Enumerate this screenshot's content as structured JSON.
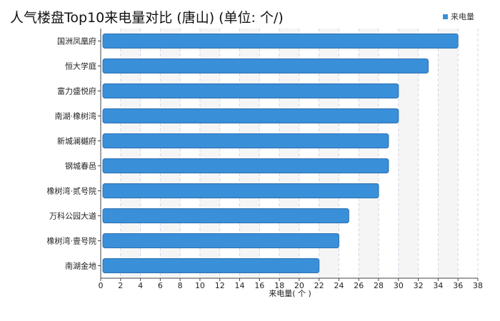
{
  "chart_data": {
    "type": "bar",
    "orientation": "horizontal",
    "title": "人气楼盘Top10来电量对比 (唐山) (单位: 个/)",
    "xlabel": "来电量( 个 )",
    "ylabel": "",
    "categories": [
      "国洲凤凰府",
      "恒大学庭",
      "富力盛悦府",
      "南湖·橡树湾",
      "新城澜樾府",
      "钢城春邑",
      "橡树湾·贰号院",
      "万科公园大道",
      "橡树湾·壹号院",
      "南湖金地"
    ],
    "series": [
      {
        "name": "来电量",
        "values": [
          36,
          33,
          30,
          30,
          29,
          29,
          28,
          25,
          24,
          22
        ]
      }
    ],
    "xlim": [
      0,
      38
    ],
    "xticks": [
      0,
      2,
      4,
      6,
      8,
      10,
      12,
      14,
      16,
      18,
      20,
      22,
      24,
      26,
      28,
      30,
      32,
      34,
      36,
      38
    ],
    "grid": true,
    "legend_position": "top-right",
    "colors": {
      "bar": "#3a8fd9",
      "bar_edge": "#2a6fb0",
      "band": "#f5f5f5",
      "grid": "#cfd6e6"
    }
  }
}
